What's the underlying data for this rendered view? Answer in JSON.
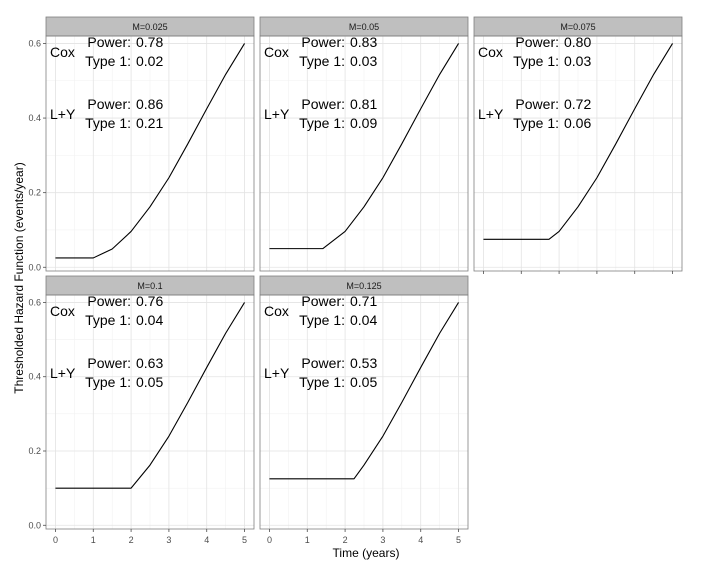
{
  "chart_data": {
    "type": "line",
    "xlabel": "Time (years)",
    "ylabel": "Thresholded Hazard Function (events/year)",
    "xlim": [
      -0.25,
      5.25
    ],
    "ylim": [
      -0.01,
      0.62
    ],
    "x_ticks": [
      "0",
      "1",
      "2",
      "3",
      "4",
      "5"
    ],
    "y_ticks": [
      "0.0",
      "0.2",
      "0.4",
      "0.6"
    ],
    "grid": true,
    "theme": "bw",
    "line_color": "#000000",
    "strip_fill": "#bfbfbf",
    "panels": [
      {
        "strip": "M=0.025",
        "threshold_time": 1.0,
        "x": [
          0,
          1.0,
          1.5,
          2,
          2.5,
          3,
          3.5,
          4,
          4.5,
          5
        ],
        "y": [
          0.025,
          0.025,
          0.049,
          0.096,
          0.162,
          0.24,
          0.331,
          0.425,
          0.517,
          0.6
        ],
        "methods": [
          {
            "name": "Cox",
            "power_label": "Power:",
            "power": "0.78",
            "type1_label": "Type 1:",
            "type1": "0.02"
          },
          {
            "name": "L+Y",
            "power_label": "Power:",
            "power": "0.86",
            "type1_label": "Type 1:",
            "type1": "0.21"
          }
        ]
      },
      {
        "strip": "M=0.05",
        "threshold_time": 1.414,
        "x": [
          0,
          1.414,
          2,
          2.5,
          3,
          3.5,
          4,
          4.5,
          5
        ],
        "y": [
          0.05,
          0.05,
          0.096,
          0.162,
          0.24,
          0.331,
          0.425,
          0.517,
          0.6
        ],
        "methods": [
          {
            "name": "Cox",
            "power_label": "Power:",
            "power": "0.83",
            "type1_label": "Type 1:",
            "type1": "0.03"
          },
          {
            "name": "L+Y",
            "power_label": "Power:",
            "power": "0.81",
            "type1_label": "Type 1:",
            "type1": "0.09"
          }
        ]
      },
      {
        "strip": "M=0.075",
        "threshold_time": 1.732,
        "x": [
          0,
          1.732,
          2,
          2.5,
          3,
          3.5,
          4,
          4.5,
          5
        ],
        "y": [
          0.075,
          0.075,
          0.096,
          0.162,
          0.24,
          0.331,
          0.425,
          0.517,
          0.6
        ],
        "methods": [
          {
            "name": "Cox",
            "power_label": "Power:",
            "power": "0.80",
            "type1_label": "Type 1:",
            "type1": "0.03"
          },
          {
            "name": "L+Y",
            "power_label": "Power:",
            "power": "0.72",
            "type1_label": "Type 1:",
            "type1": "0.06"
          }
        ]
      },
      {
        "strip": "M=0.1",
        "threshold_time": 2.0,
        "x": [
          0,
          2.0,
          2.5,
          3,
          3.5,
          4,
          4.5,
          5
        ],
        "y": [
          0.1,
          0.1,
          0.162,
          0.24,
          0.331,
          0.425,
          0.517,
          0.6
        ],
        "methods": [
          {
            "name": "Cox",
            "power_label": "Power:",
            "power": "0.76",
            "type1_label": "Type 1:",
            "type1": "0.04"
          },
          {
            "name": "L+Y",
            "power_label": "Power:",
            "power": "0.63",
            "type1_label": "Type 1:",
            "type1": "0.05"
          }
        ]
      },
      {
        "strip": "M=0.125",
        "threshold_time": 2.236,
        "x": [
          0,
          2.236,
          2.5,
          3,
          3.5,
          4,
          4.5,
          5
        ],
        "y": [
          0.125,
          0.125,
          0.162,
          0.24,
          0.331,
          0.425,
          0.517,
          0.6
        ],
        "methods": [
          {
            "name": "Cox",
            "power_label": "Power:",
            "power": "0.71",
            "type1_label": "Type 1:",
            "type1": "0.04"
          },
          {
            "name": "L+Y",
            "power_label": "Power:",
            "power": "0.53",
            "type1_label": "Type 1:",
            "type1": "0.05"
          }
        ]
      }
    ]
  }
}
